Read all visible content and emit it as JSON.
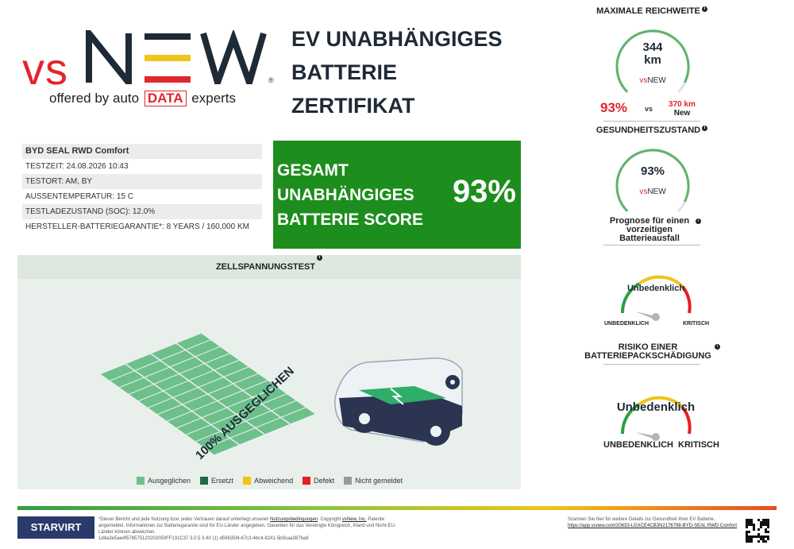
{
  "logo": {
    "vs": "vs",
    "new": "NEW",
    "registered": "®",
    "offered_by": "offered by auto",
    "data": "DATA",
    "experts": "experts"
  },
  "title": {
    "line1": "EV UNABHÄNGIGES",
    "line2": "BATTERIE",
    "line3": "ZERTIFIKAT"
  },
  "vehicle": {
    "name": "BYD SEAL RWD Comfort",
    "rows": [
      "TESTZEIT: 24.08.2026 10:43",
      "TESTORT: AM, BY",
      "AUSSENTEMPERATUR: 15 C",
      "TESTLADEZUSTAND (SOC): 12.0%",
      "HERSTELLER-BATTERIEGARANTIE*: 8 YEARS / 160,000 KM"
    ]
  },
  "score": {
    "line1": "GESAMT",
    "line2": "UNABHÄNGIGES",
    "line3": "BATTERIE SCORE",
    "value": "93%",
    "value_num": 93
  },
  "cell_test": {
    "heading": "ZELLSPANNUNGSTEST",
    "balanced_label": "100% AUSGEGLICHEN",
    "legend": [
      {
        "label": "Ausgeglichen",
        "color": "#6dbf8c"
      },
      {
        "label": "Ersetzt",
        "color": "#1d6b3f"
      },
      {
        "label": "Abweichend",
        "color": "#f2c40f"
      },
      {
        "label": "Defekt",
        "color": "#e3201f"
      },
      {
        "label": "Nicht gemeldet",
        "color": "#9a9a9a"
      }
    ]
  },
  "range": {
    "heading": "MAXIMALE REICHWEITE",
    "value": "344",
    "unit": "km",
    "percent": "93%",
    "vs": "vs",
    "new_value": "370 km",
    "new_label": "New",
    "fraction": 0.93
  },
  "health": {
    "heading": "GESUNDHEITSZUSTAND",
    "value": "93%",
    "fraction": 0.93
  },
  "prognosis": {
    "heading_line1": "Prognose für einen",
    "heading_line2": "vorzeitigen",
    "heading_line3": "Batterieausfall",
    "value": "Unbedenklich",
    "left": "UNBEDENKLICH",
    "right": "KRITISCH"
  },
  "damage": {
    "heading_line1": "RISIKO EINER",
    "heading_line2": "BATTERIEPACKSCHÄDIGUNG",
    "value": "Unbedenklich",
    "left": "UNBEDENKLICH",
    "right": "KRITISCH"
  },
  "footer": {
    "logo": "STARVIRT",
    "line1a": "*Dieser Bericht und jede Nutzung bzw. jedes Vertrauen darauf unterliegt unseren",
    "terms": "Nutzungsbedingungen",
    "line1b": ". Copyright",
    "company": "vsNew, Inc.",
    "line1c": "Patente",
    "line2": "angemeldet. Informationen zur Batteriegarantie sind für EU-Länder angegeben. Garantien für das Vereinigte Königreich, Irland und Nicht-EU-",
    "line3": "Länder können abweichen.",
    "line4": "1d4a3e5ae4f578575120202050FF131C37 3.0.5 3.40 (1) d59635f4-67c3-4bc4-8241-5b9caa387ba8",
    "scan_text": "Scannen Sie hier für weitere Details zur Gesundheit Ihrer EV Batterie.",
    "scan_url": "https://app.vsnew.com/20633-LGXCE4CB3N2176798-BYD-SEAL RWD Comfort"
  },
  "colors": {
    "score_green": "#1d8e1d",
    "accent_red": "#e0262e",
    "gauge_green": "#2f9e44",
    "gauge_yellow": "#f0c419",
    "gauge_red": "#e3201f"
  }
}
